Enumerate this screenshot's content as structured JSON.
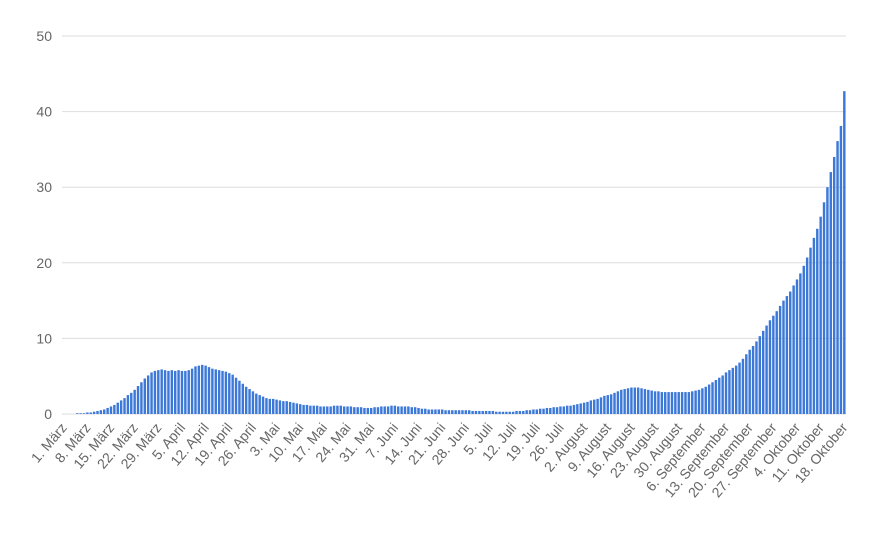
{
  "chart_data": {
    "type": "bar",
    "color": "#3c78d8",
    "grid": true,
    "ylim": [
      0,
      50
    ],
    "yticks": [
      0,
      10,
      20,
      30,
      40,
      50
    ],
    "categories": [
      "1. März",
      null,
      null,
      null,
      null,
      null,
      null,
      "8. März",
      null,
      null,
      null,
      null,
      null,
      null,
      "15. März",
      null,
      null,
      null,
      null,
      null,
      null,
      "22. März",
      null,
      null,
      null,
      null,
      null,
      null,
      "29. März",
      null,
      null,
      null,
      null,
      null,
      null,
      "5. April",
      null,
      null,
      null,
      null,
      null,
      null,
      "12. April",
      null,
      null,
      null,
      null,
      null,
      null,
      "19. April",
      null,
      null,
      null,
      null,
      null,
      null,
      "26. April",
      null,
      null,
      null,
      null,
      null,
      null,
      "3. Mai",
      null,
      null,
      null,
      null,
      null,
      null,
      "10. Mai",
      null,
      null,
      null,
      null,
      null,
      null,
      "17. Mai",
      null,
      null,
      null,
      null,
      null,
      null,
      "24. Mai",
      null,
      null,
      null,
      null,
      null,
      null,
      "31. Mai",
      null,
      null,
      null,
      null,
      null,
      null,
      "7. Juni",
      null,
      null,
      null,
      null,
      null,
      null,
      "14. Juni",
      null,
      null,
      null,
      null,
      null,
      null,
      "21. Juni",
      null,
      null,
      null,
      null,
      null,
      null,
      "28. Juni",
      null,
      null,
      null,
      null,
      null,
      null,
      "5. Juli",
      null,
      null,
      null,
      null,
      null,
      null,
      "12. Juli",
      null,
      null,
      null,
      null,
      null,
      null,
      "19. Juli",
      null,
      null,
      null,
      null,
      null,
      null,
      "26. Juli",
      null,
      null,
      null,
      null,
      null,
      null,
      "2. August",
      null,
      null,
      null,
      null,
      null,
      null,
      "9. August",
      null,
      null,
      null,
      null,
      null,
      null,
      "16. August",
      null,
      null,
      null,
      null,
      null,
      null,
      "23. August",
      null,
      null,
      null,
      null,
      null,
      null,
      "30. August",
      null,
      null,
      null,
      null,
      null,
      null,
      "6. September",
      null,
      null,
      null,
      null,
      null,
      null,
      "13. September",
      null,
      null,
      null,
      null,
      null,
      null,
      "20. September",
      null,
      null,
      null,
      null,
      null,
      null,
      "27. September",
      null,
      null,
      null,
      null,
      null,
      null,
      "4. Oktober",
      null,
      null,
      null,
      null,
      null,
      null,
      "11. Oktober",
      null,
      null,
      null,
      null,
      null,
      null,
      "18. Oktober"
    ],
    "values": [
      0,
      0,
      0,
      0,
      0.1,
      0.1,
      0.1,
      0.2,
      0.2,
      0.3,
      0.4,
      0.5,
      0.6,
      0.8,
      1.0,
      1.2,
      1.5,
      1.8,
      2.1,
      2.5,
      2.8,
      3.2,
      3.7,
      4.2,
      4.7,
      5.1,
      5.5,
      5.7,
      5.8,
      5.9,
      5.8,
      5.7,
      5.8,
      5.7,
      5.8,
      5.7,
      5.7,
      5.8,
      6.0,
      6.3,
      6.4,
      6.5,
      6.4,
      6.2,
      6.0,
      5.9,
      5.8,
      5.7,
      5.6,
      5.4,
      5.2,
      4.8,
      4.4,
      4.0,
      3.6,
      3.3,
      3.0,
      2.7,
      2.5,
      2.3,
      2.1,
      2.0,
      2.0,
      1.9,
      1.8,
      1.7,
      1.7,
      1.6,
      1.5,
      1.4,
      1.3,
      1.2,
      1.2,
      1.1,
      1.1,
      1.1,
      1.0,
      1.0,
      1.0,
      1.0,
      1.1,
      1.1,
      1.1,
      1.0,
      1.0,
      1.0,
      0.9,
      0.9,
      0.9,
      0.8,
      0.8,
      0.8,
      0.9,
      0.9,
      1.0,
      1.0,
      1.0,
      1.1,
      1.1,
      1.0,
      1.0,
      1.0,
      1.0,
      0.9,
      0.9,
      0.8,
      0.7,
      0.7,
      0.6,
      0.6,
      0.6,
      0.6,
      0.6,
      0.5,
      0.5,
      0.5,
      0.5,
      0.5,
      0.5,
      0.5,
      0.5,
      0.4,
      0.4,
      0.4,
      0.4,
      0.4,
      0.4,
      0.4,
      0.3,
      0.3,
      0.3,
      0.3,
      0.3,
      0.3,
      0.4,
      0.4,
      0.4,
      0.5,
      0.5,
      0.6,
      0.6,
      0.7,
      0.7,
      0.8,
      0.8,
      0.9,
      0.9,
      1.0,
      1.0,
      1.1,
      1.1,
      1.2,
      1.3,
      1.4,
      1.5,
      1.6,
      1.8,
      1.9,
      2.0,
      2.2,
      2.4,
      2.5,
      2.6,
      2.8,
      3.0,
      3.2,
      3.3,
      3.4,
      3.5,
      3.5,
      3.5,
      3.4,
      3.3,
      3.2,
      3.1,
      3.0,
      3.0,
      2.9,
      2.9,
      2.9,
      2.9,
      2.9,
      2.9,
      2.9,
      2.9,
      2.9,
      3.0,
      3.1,
      3.2,
      3.4,
      3.6,
      3.9,
      4.2,
      4.5,
      4.8,
      5.1,
      5.5,
      5.8,
      6.1,
      6.4,
      6.8,
      7.3,
      7.9,
      8.5,
      9.0,
      9.6,
      10.3,
      11.0,
      11.7,
      12.4,
      13.0,
      13.6,
      14.3,
      15.0,
      15.6,
      16.2,
      17.0,
      17.8,
      18.6,
      19.6,
      20.7,
      22.0,
      23.3,
      24.5,
      26.1,
      28.0,
      30.0,
      32.0,
      34.0,
      36.1,
      38.1,
      42.7
    ]
  }
}
